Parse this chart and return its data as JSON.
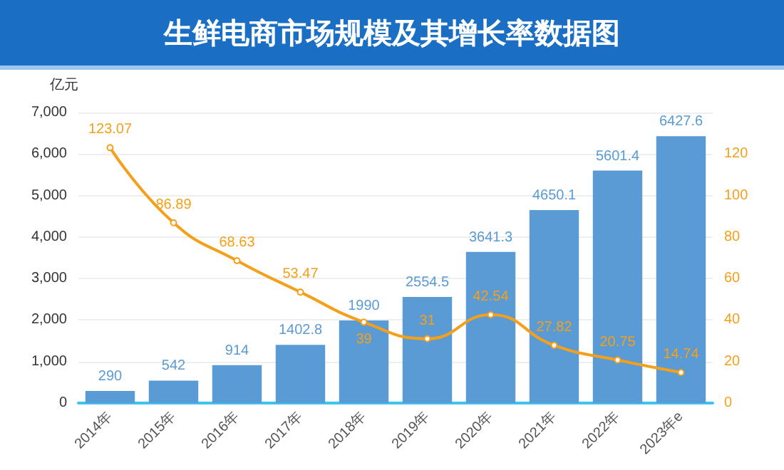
{
  "chart_data": {
    "type": "bar",
    "title": "生鲜电商市场规模及其增长率数据图",
    "ylabel": "亿元",
    "categories": [
      "2014年",
      "2015年",
      "2016年",
      "2017年",
      "2018年",
      "2019年",
      "2020年",
      "2021年",
      "2022年",
      "2023年e"
    ],
    "series": [
      {
        "color": "#5b9bd5",
        "values": [
          290,
          542,
          914,
          1402.8,
          1990,
          2554.5,
          3641.3,
          4650.1,
          5601.4,
          6427.6
        ]
      },
      {
        "type": "line",
        "axis": "y2",
        "color": "#f5a01a",
        "values": [
          123.07,
          86.89,
          68.63,
          53.47,
          39,
          31,
          42.54,
          27.82,
          20.75,
          14.74
        ]
      }
    ],
    "ylim": [
      0,
      7000
    ],
    "yticks": [
      {
        "value": 0,
        "label": "0"
      },
      {
        "value": 1000,
        "label": "1,000"
      },
      {
        "value": 2000,
        "label": "2,000"
      },
      {
        "value": 3000,
        "label": "3,000"
      },
      {
        "value": 4000,
        "label": "4,000"
      },
      {
        "value": 5000,
        "label": "5,000"
      },
      {
        "value": 6000,
        "label": "6,000"
      },
      {
        "value": 7000,
        "label": "7,000"
      }
    ],
    "y2lim": [
      0,
      140
    ],
    "y2ticks": [
      0,
      20,
      40,
      60,
      80,
      100,
      120
    ],
    "data_labels": true,
    "grid": "y",
    "marker": "circle",
    "line_style": "solid"
  }
}
